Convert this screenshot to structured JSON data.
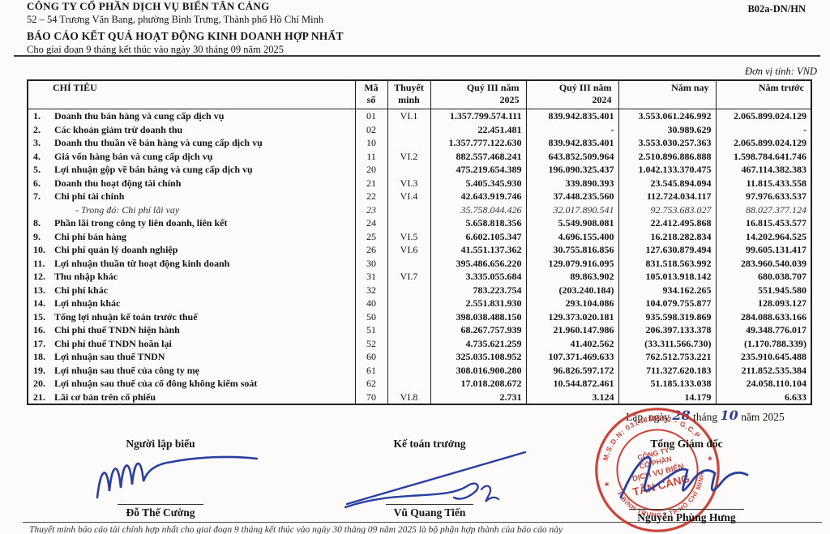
{
  "page": {
    "form_code": "B02a-DN/HN",
    "company_name": "CÔNG TY CỔ PHẦN DỊCH VỤ BIỂN TÂN CẢNG",
    "address": "52 – 54 Trương Văn Bang, phường Bình Trưng, Thành phố Hồ Chí Minh",
    "report_title": "BÁO CÁO KẾT QUẢ HOẠT ĐỘNG KINH DOANH HỢP NHẤT",
    "period": "Cho giai đoạn 9 tháng kết thúc vào ngày 30 tháng 09 năm 2025",
    "unit_label": "Đơn vị tính: VND"
  },
  "table": {
    "headers": {
      "label": "CHỈ TIÊU",
      "code_l1": "Mã",
      "code_l2": "số",
      "note_l1": "Thuyết",
      "note_l2": "minh",
      "q2025_l1": "Quý III năm",
      "q2025_l2": "2025",
      "q2024_l1": "Quý III năm",
      "q2024_l2": "2024",
      "ytd": "Năm nay",
      "prior": "Năm trước"
    },
    "rows": [
      {
        "no": "1.",
        "label": "Doanh thu bán hàng và cung cấp dịch vụ",
        "code": "01",
        "note": "VI.1",
        "v1": "1.357.799.574.111",
        "v2": "839.942.835.401",
        "v3": "3.553.061.246.992",
        "v4": "2.065.899.024.129",
        "italic": false
      },
      {
        "no": "2.",
        "label": "Các khoản giảm trừ doanh thu",
        "code": "02",
        "note": "",
        "v1": "22.451.481",
        "v2": "-",
        "v3": "30.989.629",
        "v4": "-",
        "italic": false
      },
      {
        "no": "3.",
        "label": "Doanh thu thuần về bán hàng và cung cấp dịch vụ",
        "code": "10",
        "note": "",
        "v1": "1.357.777.122.630",
        "v2": "839.942.835.401",
        "v3": "3.553.030.257.363",
        "v4": "2.065.899.024.129",
        "italic": false
      },
      {
        "no": "4.",
        "label": "Giá vốn hàng bán và cung cấp dịch vụ",
        "code": "11",
        "note": "VI.2",
        "v1": "882.557.468.241",
        "v2": "643.852.509.964",
        "v3": "2.510.896.886.888",
        "v4": "1.598.784.641.746",
        "italic": false
      },
      {
        "no": "5.",
        "label": "Lợi nhuận gộp về bán hàng và cung cấp dịch vụ",
        "code": "20",
        "note": "",
        "v1": "475.219.654.389",
        "v2": "196.090.325.437",
        "v3": "1.042.133.370.475",
        "v4": "467.114.382.383",
        "italic": false
      },
      {
        "no": "6.",
        "label": "Doanh thu hoạt động tài chính",
        "code": "21",
        "note": "VI.3",
        "v1": "5.405.345.930",
        "v2": "339.890.393",
        "v3": "23.545.894.094",
        "v4": "11.815.433.558",
        "italic": false
      },
      {
        "no": "7.",
        "label": "Chi phí tài chính",
        "code": "22",
        "note": "VI.4",
        "v1": "42.643.919.746",
        "v2": "37.448.235.560",
        "v3": "112.724.034.117",
        "v4": "97.976.633.537",
        "italic": false
      },
      {
        "no": "",
        "label": "- Trong đó: Chi phí lãi vay",
        "code": "23",
        "note": "",
        "v1": "35.758.044.426",
        "v2": "32.017.890.541",
        "v3": "92.753.683.027",
        "v4": "88.027.377.124",
        "italic": true
      },
      {
        "no": "8.",
        "label": "Phần lãi trong công ty liên doanh, liên kết",
        "code": "24",
        "note": "",
        "v1": "5.658.818.356",
        "v2": "5.549.908.081",
        "v3": "22.412.495.868",
        "v4": "16.815.453.577",
        "italic": false
      },
      {
        "no": "9.",
        "label": "Chi phí bán hàng",
        "code": "25",
        "note": "VI.5",
        "v1": "6.602.105.347",
        "v2": "4.696.155.400",
        "v3": "16.218.282.834",
        "v4": "14.202.964.525",
        "italic": false
      },
      {
        "no": "10.",
        "label": "Chi phí quản lý doanh nghiệp",
        "code": "26",
        "note": "VI.6",
        "v1": "41.551.137.362",
        "v2": "30.755.816.856",
        "v3": "127.630.879.494",
        "v4": "99.605.131.417",
        "italic": false
      },
      {
        "no": "11.",
        "label": "Lợi nhuận thuần từ hoạt động kinh doanh",
        "code": "30",
        "note": "",
        "v1": "395.486.656.220",
        "v2": "129.079.916.095",
        "v3": "831.518.563.992",
        "v4": "283.960.540.039",
        "italic": false
      },
      {
        "no": "12.",
        "label": "Thu nhập khác",
        "code": "31",
        "note": "VI.7",
        "v1": "3.335.055.684",
        "v2": "89.863.902",
        "v3": "105.013.918.142",
        "v4": "680.038.707",
        "italic": false
      },
      {
        "no": "13.",
        "label": "Chi phí khác",
        "code": "32",
        "note": "",
        "v1": "783.223.754",
        "v2": "(203.240.184)",
        "v3": "934.162.265",
        "v4": "551.945.580",
        "italic": false
      },
      {
        "no": "14.",
        "label": "Lợi nhuận khác",
        "code": "40",
        "note": "",
        "v1": "2.551.831.930",
        "v2": "293.104.086",
        "v3": "104.079.755.877",
        "v4": "128.093.127",
        "italic": false
      },
      {
        "no": "15.",
        "label": "Tổng lợi nhuận kế toán trước thuế",
        "code": "50",
        "note": "",
        "v1": "398.038.488.150",
        "v2": "129.373.020.181",
        "v3": "935.598.319.869",
        "v4": "284.088.633.166",
        "italic": false
      },
      {
        "no": "16.",
        "label": "Chi phí thuế TNDN hiện hành",
        "code": "51",
        "note": "",
        "v1": "68.267.757.939",
        "v2": "21.960.147.986",
        "v3": "206.397.133.378",
        "v4": "49.348.776.017",
        "italic": false
      },
      {
        "no": "17.",
        "label": "Chi phí thuế TNDN hoãn lại",
        "code": "52",
        "note": "",
        "v1": "4.735.621.259",
        "v2": "41.402.562",
        "v3": "(33.311.566.730)",
        "v4": "(1.170.788.339)",
        "italic": false
      },
      {
        "no": "18.",
        "label": "Lợi nhuận sau thuế TNDN",
        "code": "60",
        "note": "",
        "v1": "325.035.108.952",
        "v2": "107.371.469.633",
        "v3": "762.512.753.221",
        "v4": "235.910.645.488",
        "italic": false
      },
      {
        "no": "19.",
        "label": "Lợi nhuận sau thuế của công ty mẹ",
        "code": "61",
        "note": "",
        "v1": "308.016.900.280",
        "v2": "96.826.597.172",
        "v3": "711.327.620.183",
        "v4": "211.852.535.384",
        "italic": false
      },
      {
        "no": "20.",
        "label": "Lợi nhuận sau thuế của cổ đông không kiểm soát",
        "code": "62",
        "note": "",
        "v1": "17.018.208.672",
        "v2": "10.544.872.461",
        "v3": "51.185.133.038",
        "v4": "24.058.110.104",
        "italic": false
      },
      {
        "no": "21.",
        "label": "Lãi cơ bản trên cổ phiếu",
        "code": "70",
        "note": "VI.8",
        "v1": "2.731",
        "v2": "3.124",
        "v3": "14.179",
        "v4": "6.633",
        "italic": false
      }
    ]
  },
  "signature_block": {
    "date_prefix": "Lập, ngày",
    "date_day": "28",
    "date_mid": "tháng",
    "date_month": "10",
    "date_suffix": "năm 2025",
    "signers": [
      {
        "title": "Người lập biểu",
        "name": "Đỗ Thế Cường"
      },
      {
        "title": "Kế toán trưởng",
        "name": "Vũ Quang Tiến"
      },
      {
        "title": "Tổng Giám đốc",
        "name": "Nguyễn Phùng Hưng"
      }
    ]
  },
  "stamp": {
    "ring_top": "M.S.D.N: 0314838652 - G.C.P",
    "ring_bottom": "P.BÌNH TRUNG - TP.HỒ CHÍ MINH",
    "center_lines": [
      "CÔNG TY",
      "CỔ PHẦN",
      "DỊCH VỤ BIỂN",
      "TÂN CẢNG"
    ],
    "star": "★",
    "color": "#c9362b"
  },
  "footnote": "Thuyết minh báo cáo tài chính hợp nhất cho giai đoạn 9 tháng kết thúc vào ngày 30 tháng 09 năm 2025 là bộ phận hợp thành của báo cáo này"
}
